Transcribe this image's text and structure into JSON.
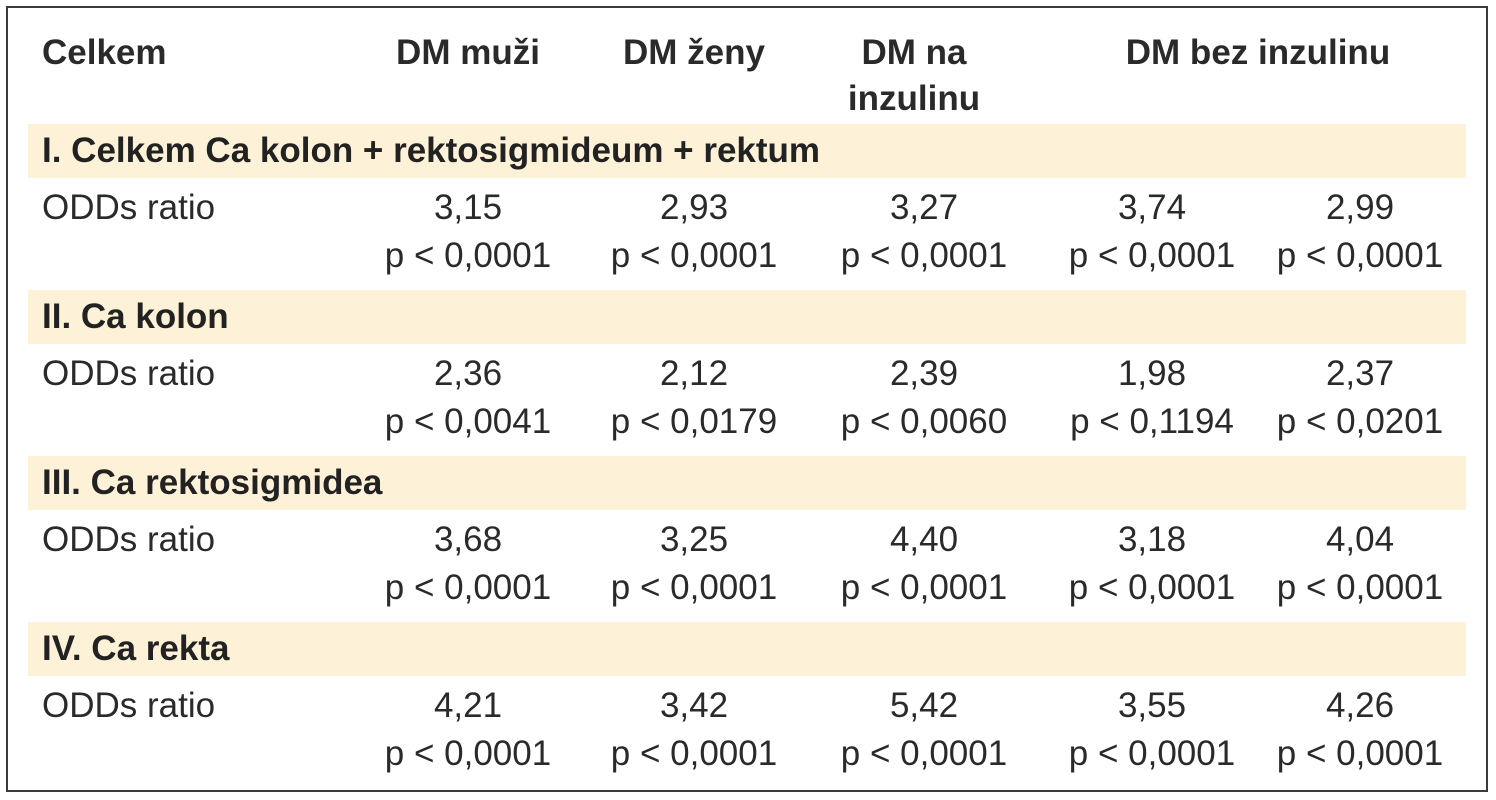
{
  "header": {
    "col0": "Celkem",
    "col1": "DM muži",
    "col2": "DM ženy",
    "col3_line1": "DM na",
    "col3_line2": "inzulinu",
    "col4": "DM bez inzulinu"
  },
  "sections": [
    {
      "title": "I. Celkem Ca kolon + rektosigmideum + rektum",
      "row_label": "ODDs ratio",
      "odds": [
        "3,15",
        "2,93",
        "3,27",
        "3,74",
        "2,99"
      ],
      "p": [
        "p < 0,0001",
        "p < 0,0001",
        "p < 0,0001",
        "p < 0,0001",
        "p < 0,0001"
      ]
    },
    {
      "title": "II. Ca kolon",
      "row_label": "ODDs ratio",
      "odds": [
        "2,36",
        "2,12",
        "2,39",
        "1,98",
        "2,37"
      ],
      "p": [
        "p < 0,0041",
        "p < 0,0179",
        "p < 0,0060",
        "p < 0,1194",
        "p < 0,0201"
      ]
    },
    {
      "title": "III. Ca rektosigmidea",
      "row_label": "ODDs ratio",
      "odds": [
        "3,68",
        "3,25",
        "4,40",
        "3,18",
        "4,04"
      ],
      "p": [
        "p < 0,0001",
        "p < 0,0001",
        "p < 0,0001",
        "p < 0,0001",
        "p < 0,0001"
      ]
    },
    {
      "title": "IV. Ca rekta",
      "row_label": "ODDs ratio",
      "odds": [
        "4,21",
        "3,42",
        "5,42",
        "3,55",
        "4,26"
      ],
      "p": [
        "p < 0,0001",
        "p < 0,0001",
        "p < 0,0001",
        "p < 0,0001",
        "p < 0,0001"
      ]
    }
  ]
}
